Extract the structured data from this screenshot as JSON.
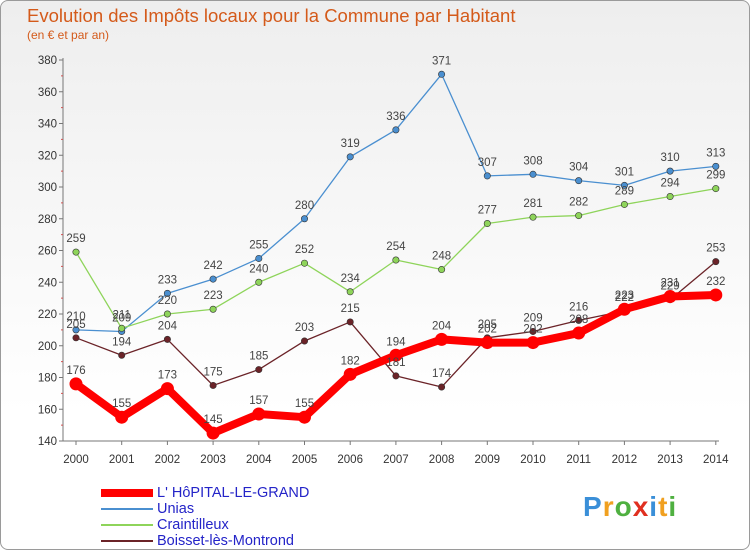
{
  "header": {
    "title": "Evolution des Impôts locaux pour la Commune par Habitant",
    "subtitle": "(en € et par an)"
  },
  "chart_data": {
    "type": "line",
    "title": "Evolution des Impôts locaux pour la Commune par Habitant",
    "subtitle": "(en € et par an)",
    "xlabel": "",
    "ylabel": "",
    "x": [
      "2000",
      "2001",
      "2002",
      "2003",
      "2004",
      "2005",
      "2006",
      "2007",
      "2008",
      "2009",
      "2010",
      "2011",
      "2012",
      "2013",
      "2014"
    ],
    "yticks": [
      "140",
      "160",
      "180",
      "200",
      "220",
      "240",
      "260",
      "280",
      "300",
      "320",
      "340",
      "360",
      "380"
    ],
    "ylim": [
      140,
      380
    ],
    "grid": false,
    "legend": "bottom-left",
    "series": [
      {
        "name": "Unias",
        "color": "#4a8fd0",
        "width": 1.3,
        "values": [
          210,
          209,
          233,
          242,
          255,
          280,
          319,
          336,
          371,
          307,
          308,
          304,
          301,
          310,
          313
        ],
        "labels": [
          "210",
          "209",
          "233",
          "242",
          "255",
          "280",
          "319",
          "336",
          "371",
          "307",
          "308",
          "304",
          "301",
          "310",
          "313"
        ]
      },
      {
        "name": "Craintilleux",
        "color": "#8ed45a",
        "width": 1.3,
        "values": [
          259,
          211,
          220,
          223,
          240,
          252,
          234,
          254,
          248,
          277,
          281,
          282,
          289,
          294,
          299
        ],
        "labels": [
          "259",
          "211",
          "220",
          "223",
          "240",
          "252",
          "234",
          "254",
          "248",
          "277",
          "281",
          "282",
          "289",
          "294",
          "299"
        ]
      },
      {
        "name": "Boisset-lès-Montrond",
        "color": "#6b2328",
        "width": 1.3,
        "values": [
          205,
          194,
          204,
          175,
          185,
          203,
          215,
          181,
          174,
          205,
          209,
          216,
          222,
          229,
          253
        ],
        "labels": [
          "205",
          "194",
          "204",
          "175",
          "185",
          "203",
          "215",
          "181",
          "174",
          "205",
          "209",
          "216",
          "222",
          "229",
          "253"
        ]
      },
      {
        "name": "L' HôPITAL-LE-GRAND",
        "color": "#ff0000",
        "width": 8,
        "values": [
          176,
          155,
          173,
          145,
          157,
          155,
          182,
          194,
          204,
          202,
          202,
          208,
          223,
          231,
          232
        ],
        "labels": [
          "176",
          "155",
          "173",
          "145",
          "157",
          "155",
          "182",
          "194",
          "204",
          "202",
          "202",
          "208",
          "223",
          "231",
          "232"
        ]
      }
    ]
  },
  "legend": {
    "items": [
      {
        "label": "L' HôPITAL-LE-GRAND",
        "color": "#ff0000",
        "thickness": 8
      },
      {
        "label": "Unias",
        "color": "#4a8fd0",
        "thickness": 2
      },
      {
        "label": "Craintilleux",
        "color": "#8ed45a",
        "thickness": 2
      },
      {
        "label": "Boisset-lès-Montrond",
        "color": "#6b2328",
        "thickness": 2
      }
    ]
  },
  "logo": {
    "letters": [
      "P",
      "r",
      "o",
      "x",
      "i",
      "t",
      "i"
    ],
    "colors": [
      "#3a8fd8",
      "#f0a020",
      "#4fb040",
      "#e03020",
      "#3a8fd8",
      "#f0a020",
      "#4fb040"
    ]
  }
}
